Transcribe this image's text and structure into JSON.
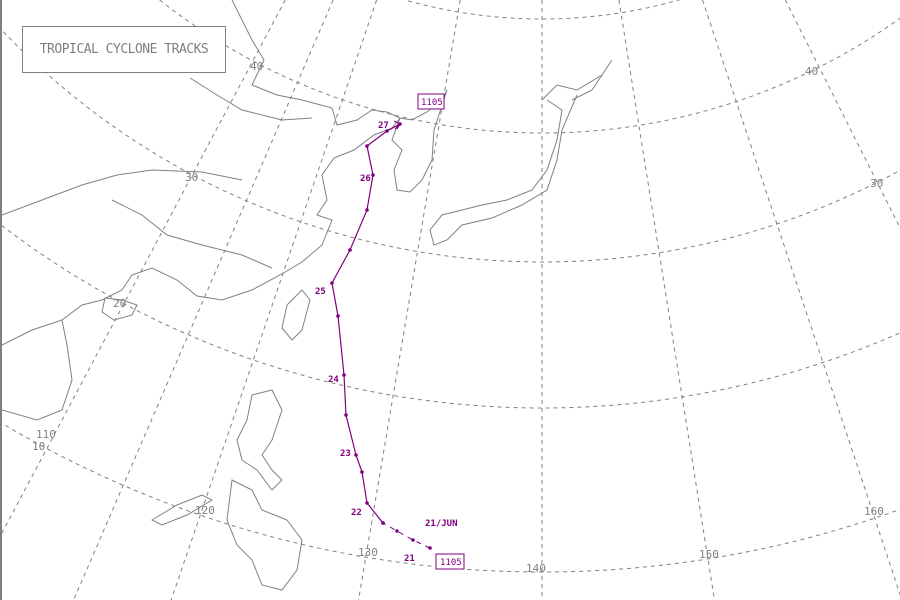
{
  "title": "TROPICAL CYCLONE TRACKS",
  "colors": {
    "track": "#800080",
    "grid": "#808080",
    "coast": "#808080",
    "background": "#ffffff"
  },
  "grid": {
    "latitude_labels": [
      "40",
      "30",
      "20",
      "10"
    ],
    "longitude_labels": [
      "110",
      "120",
      "130",
      "140",
      "150",
      "160"
    ]
  },
  "storm": {
    "id": "1105",
    "start_label": "21/JUN",
    "day_labels": [
      "21",
      "22",
      "23",
      "24",
      "25",
      "26",
      "27"
    ]
  }
}
